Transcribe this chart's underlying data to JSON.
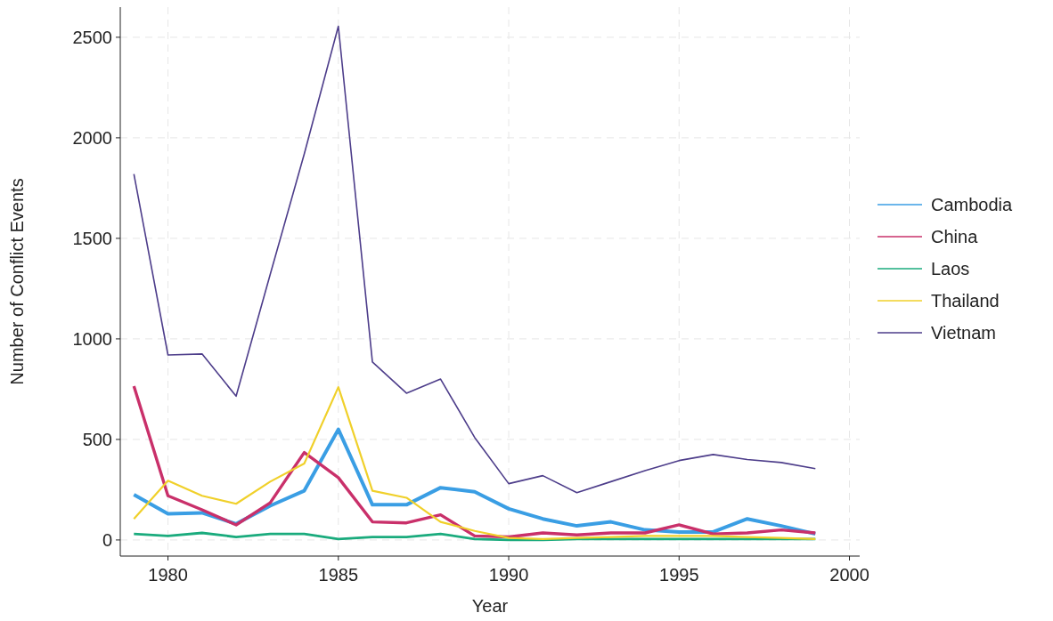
{
  "chart_data": {
    "type": "line",
    "xlabel": "Year",
    "ylabel": "Number of Conflict Events",
    "x": [
      1979,
      1980,
      1981,
      1982,
      1983,
      1984,
      1985,
      1986,
      1987,
      1988,
      1989,
      1990,
      1991,
      1992,
      1993,
      1994,
      1995,
      1996,
      1997,
      1998,
      1999
    ],
    "series": [
      {
        "name": "Cambodia",
        "color": "#3a9ee4",
        "values": [
          225,
          130,
          135,
          80,
          170,
          245,
          550,
          175,
          175,
          260,
          240,
          155,
          105,
          70,
          90,
          50,
          40,
          40,
          105,
          70,
          30
        ]
      },
      {
        "name": "China",
        "color": "#c9306a",
        "values": [
          765,
          220,
          150,
          75,
          185,
          435,
          310,
          90,
          85,
          125,
          20,
          15,
          35,
          25,
          35,
          35,
          75,
          30,
          35,
          50,
          35
        ]
      },
      {
        "name": "Laos",
        "color": "#1aab7d",
        "values": [
          30,
          20,
          35,
          15,
          30,
          30,
          5,
          15,
          15,
          30,
          5,
          0,
          0,
          5,
          5,
          5,
          5,
          5,
          5,
          5,
          5
        ]
      },
      {
        "name": "Thailand",
        "color": "#f0d02a",
        "values": [
          105,
          295,
          220,
          180,
          290,
          380,
          760,
          245,
          210,
          90,
          45,
          10,
          5,
          10,
          15,
          20,
          20,
          20,
          15,
          10,
          5
        ]
      },
      {
        "name": "Vietnam",
        "color": "#4d3d8a",
        "values": [
          1820,
          920,
          925,
          715,
          1320,
          1920,
          2555,
          885,
          730,
          800,
          510,
          280,
          320,
          235,
          290,
          345,
          395,
          425,
          400,
          385,
          355
        ]
      }
    ],
    "xlim": [
      1978.6,
      2000.3
    ],
    "ylim": [
      -80,
      2650
    ],
    "xticks": [
      1980,
      1985,
      1990,
      1995,
      2000
    ],
    "yticks": [
      0,
      500,
      1000,
      1500,
      2000,
      2500
    ],
    "grid": true,
    "legend": "right",
    "line_style": "solid"
  }
}
